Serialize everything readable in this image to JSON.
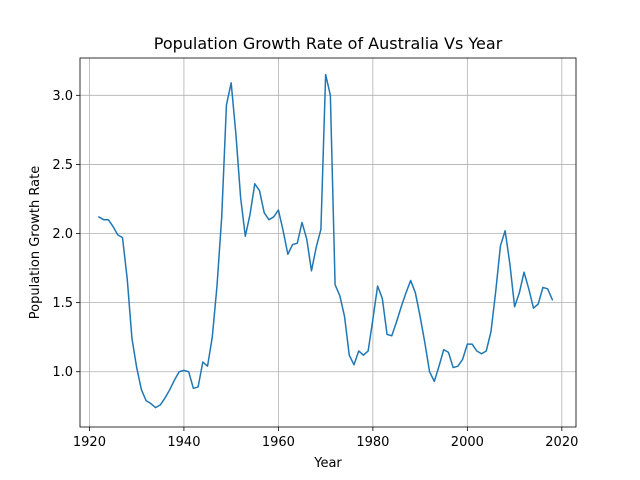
{
  "chart_data": {
    "type": "line",
    "title": "Population Growth Rate of Australia Vs Year",
    "xlabel": "Year",
    "ylabel": "Population Growth Rate",
    "xlim": [
      1918,
      2023
    ],
    "ylim": [
      0.6,
      3.27
    ],
    "xticks": [
      1920,
      1940,
      1960,
      1980,
      2000,
      2020
    ],
    "xtick_labels": [
      "1920",
      "1940",
      "1960",
      "1980",
      "2000",
      "2020"
    ],
    "yticks": [
      1.0,
      1.5,
      2.0,
      2.5,
      3.0
    ],
    "ytick_labels": [
      "1.0",
      "1.5",
      "2.0",
      "2.5",
      "3.0"
    ],
    "grid": true,
    "series": [
      {
        "color": "#1f77b4",
        "x": [
          1922,
          1923,
          1924,
          1925,
          1926,
          1927,
          1928,
          1929,
          1930,
          1931,
          1932,
          1933,
          1934,
          1935,
          1936,
          1937,
          1938,
          1939,
          1940,
          1941,
          1942,
          1943,
          1944,
          1945,
          1946,
          1947,
          1948,
          1949,
          1950,
          1951,
          1952,
          1953,
          1954,
          1955,
          1956,
          1957,
          1958,
          1959,
          1960,
          1961,
          1962,
          1963,
          1964,
          1965,
          1966,
          1967,
          1968,
          1969,
          1970,
          1971,
          1972,
          1973,
          1974,
          1975,
          1976,
          1977,
          1978,
          1979,
          1980,
          1981,
          1982,
          1983,
          1984,
          1985,
          1986,
          1987,
          1988,
          1989,
          1990,
          1991,
          1992,
          1993,
          1994,
          1995,
          1996,
          1997,
          1998,
          1999,
          2000,
          2001,
          2002,
          2003,
          2004,
          2005,
          2006,
          2007,
          2008,
          2009,
          2010,
          2011,
          2012,
          2013,
          2014,
          2015,
          2016,
          2017,
          2018
        ],
        "values": [
          2.12,
          2.1,
          2.1,
          2.05,
          1.99,
          1.97,
          1.67,
          1.24,
          1.03,
          0.87,
          0.79,
          0.77,
          0.74,
          0.76,
          0.81,
          0.87,
          0.94,
          1.0,
          1.01,
          1.0,
          0.88,
          0.89,
          1.07,
          1.04,
          1.25,
          1.62,
          2.12,
          2.93,
          3.09,
          2.72,
          2.26,
          1.98,
          2.14,
          2.36,
          2.31,
          2.15,
          2.1,
          2.12,
          2.17,
          2.02,
          1.85,
          1.92,
          1.93,
          2.08,
          1.96,
          1.73,
          1.9,
          2.03,
          3.15,
          3.0,
          1.63,
          1.55,
          1.4,
          1.12,
          1.05,
          1.15,
          1.12,
          1.15,
          1.38,
          1.62,
          1.53,
          1.27,
          1.26,
          1.36,
          1.47,
          1.57,
          1.66,
          1.57,
          1.4,
          1.21,
          1.0,
          0.93,
          1.04,
          1.16,
          1.14,
          1.03,
          1.04,
          1.09,
          1.2,
          1.2,
          1.15,
          1.13,
          1.15,
          1.29,
          1.58,
          1.91,
          2.02,
          1.78,
          1.47,
          1.57,
          1.72,
          1.6,
          1.46,
          1.49,
          1.61,
          1.6,
          1.52
        ]
      }
    ]
  }
}
